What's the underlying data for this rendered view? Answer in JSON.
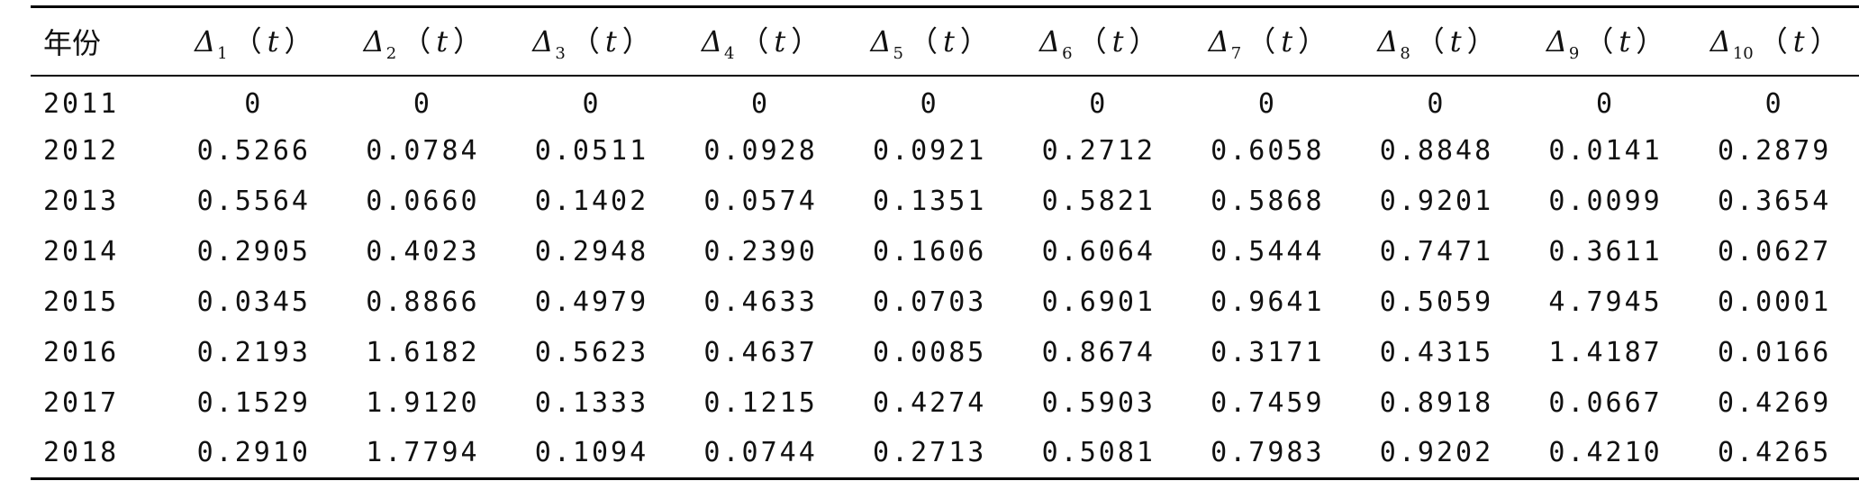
{
  "table": {
    "header": {
      "year": "年份",
      "columns": [
        {
          "symbol": "Δ",
          "sub": "1",
          "open": "（",
          "var": "t",
          "close": "）"
        },
        {
          "symbol": "Δ",
          "sub": "2",
          "open": "（",
          "var": "t",
          "close": "）"
        },
        {
          "symbol": "Δ",
          "sub": "3",
          "open": "（",
          "var": "t",
          "close": "）"
        },
        {
          "symbol": "Δ",
          "sub": "4",
          "open": "（",
          "var": "t",
          "close": "）"
        },
        {
          "symbol": "Δ",
          "sub": "5",
          "open": "（",
          "var": "t",
          "close": "）"
        },
        {
          "symbol": "Δ",
          "sub": "6",
          "open": "（",
          "var": "t",
          "close": "）"
        },
        {
          "symbol": "Δ",
          "sub": "7",
          "open": "（",
          "var": "t",
          "close": "）"
        },
        {
          "symbol": "Δ",
          "sub": "8",
          "open": "（",
          "var": "t",
          "close": "）"
        },
        {
          "symbol": "Δ",
          "sub": "9",
          "open": "（",
          "var": "t",
          "close": "）"
        },
        {
          "symbol": "Δ",
          "sub": "10",
          "open": "（",
          "var": "t",
          "close": "）"
        }
      ]
    },
    "rows": [
      {
        "year": "2011",
        "values": [
          "0",
          "0",
          "0",
          "0",
          "0",
          "0",
          "0",
          "0",
          "0",
          "0"
        ]
      },
      {
        "year": "2012",
        "values": [
          "0.5266",
          "0.0784",
          "0.0511",
          "0.0928",
          "0.0921",
          "0.2712",
          "0.6058",
          "0.8848",
          "0.0141",
          "0.2879"
        ]
      },
      {
        "year": "2013",
        "values": [
          "0.5564",
          "0.0660",
          "0.1402",
          "0.0574",
          "0.1351",
          "0.5821",
          "0.5868",
          "0.9201",
          "0.0099",
          "0.3654"
        ]
      },
      {
        "year": "2014",
        "values": [
          "0.2905",
          "0.4023",
          "0.2948",
          "0.2390",
          "0.1606",
          "0.6064",
          "0.5444",
          "0.7471",
          "0.3611",
          "0.0627"
        ]
      },
      {
        "year": "2015",
        "values": [
          "0.0345",
          "0.8866",
          "0.4979",
          "0.4633",
          "0.0703",
          "0.6901",
          "0.9641",
          "0.5059",
          "4.7945",
          "0.0001"
        ]
      },
      {
        "year": "2016",
        "values": [
          "0.2193",
          "1.6182",
          "0.5623",
          "0.4637",
          "0.0085",
          "0.8674",
          "0.3171",
          "0.4315",
          "1.4187",
          "0.0166"
        ]
      },
      {
        "year": "2017",
        "values": [
          "0.1529",
          "1.9120",
          "0.1333",
          "0.1215",
          "0.4274",
          "0.5903",
          "0.7459",
          "0.8918",
          "0.0667",
          "0.4269"
        ]
      },
      {
        "year": "2018",
        "values": [
          "0.2910",
          "1.7794",
          "0.1094",
          "0.0744",
          "0.2713",
          "0.5081",
          "0.7983",
          "0.9202",
          "0.4210",
          "0.4265"
        ]
      }
    ]
  }
}
